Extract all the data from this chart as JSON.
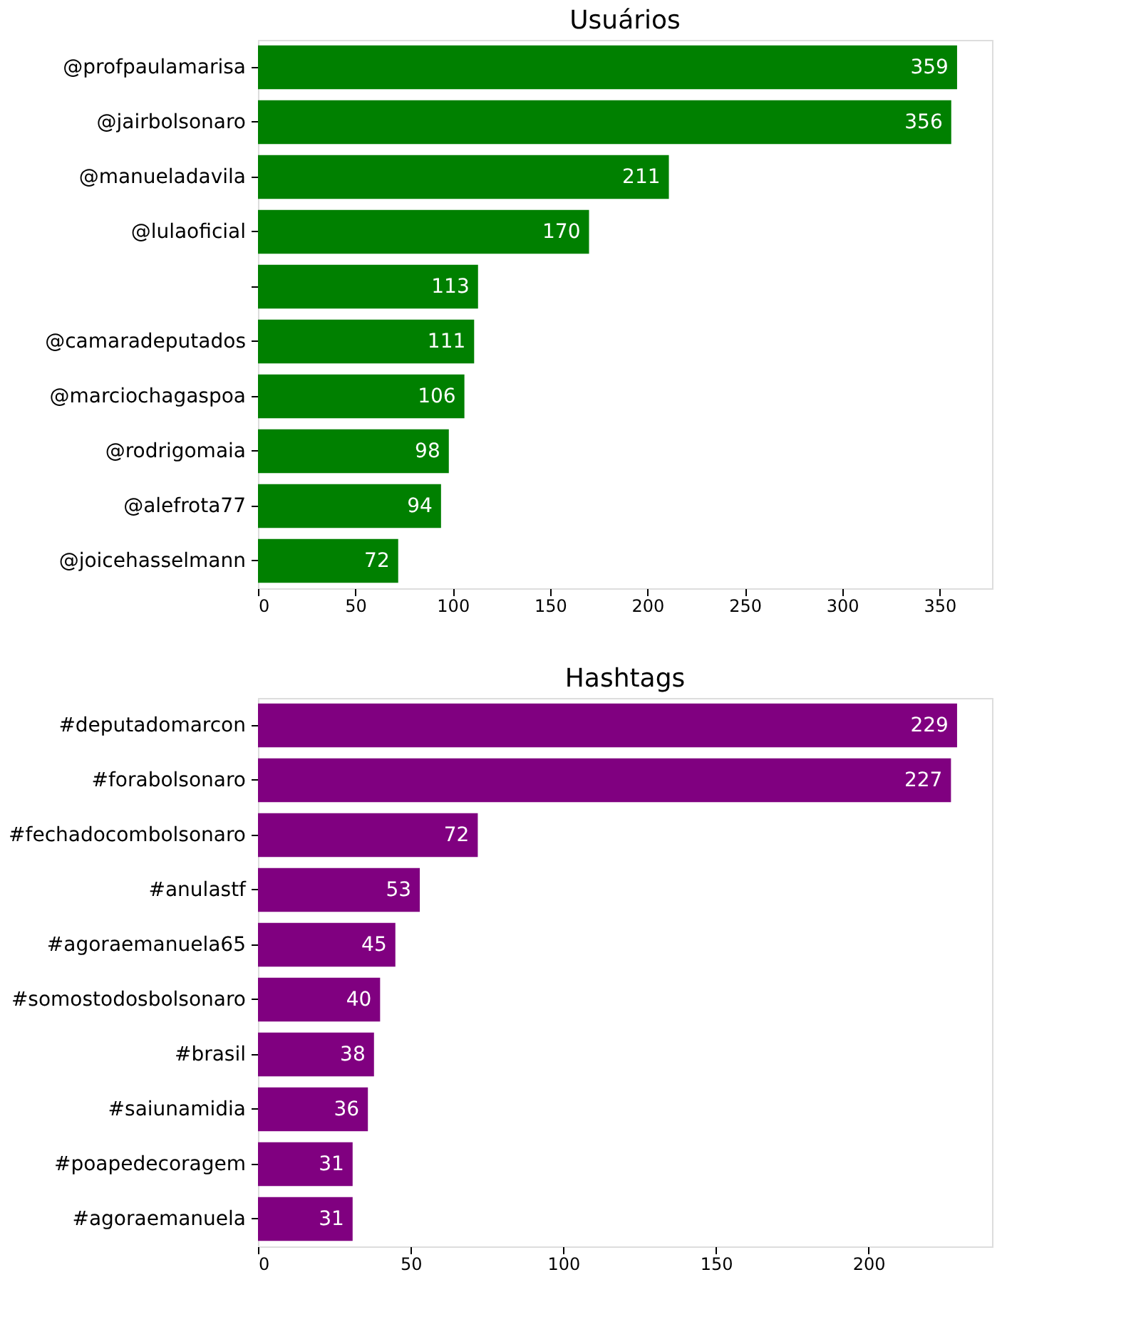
{
  "chart_data": [
    {
      "type": "bar",
      "orientation": "horizontal",
      "title": "Usuários",
      "categories": [
        "@profpaulamarisa",
        "@jairbolsonaro",
        "@manueladavila",
        "@lulaoficial",
        null,
        "@camaradeputados",
        "@marciochagaspoa",
        "@rodrigomaia",
        "@alefrota77",
        "@joicehasselmann"
      ],
      "values": [
        359,
        356,
        211,
        170,
        113,
        111,
        106,
        98,
        94,
        72
      ],
      "color": "#008000",
      "xlim": [
        0,
        376.95
      ],
      "xticks": [
        0,
        50,
        100,
        150,
        200,
        250,
        300,
        350
      ],
      "data_labels": true,
      "grid": false
    },
    {
      "type": "bar",
      "orientation": "horizontal",
      "title": "Hashtags",
      "categories": [
        "#deputadomarcon",
        "#forabolsonaro",
        "#fechadocombolsonaro",
        "#anulastf",
        "#agoraemanuela65",
        "#somostodosbolsonaro",
        "#brasil",
        "#saiunamidia",
        "#poapedecoragem",
        "#agoraemanuela"
      ],
      "values": [
        229,
        227,
        72,
        53,
        45,
        40,
        38,
        36,
        31,
        31
      ],
      "color": "#800080",
      "xlim": [
        0,
        240.45
      ],
      "xticks": [
        0,
        50,
        100,
        150,
        200
      ],
      "data_labels": true,
      "grid": false
    }
  ]
}
